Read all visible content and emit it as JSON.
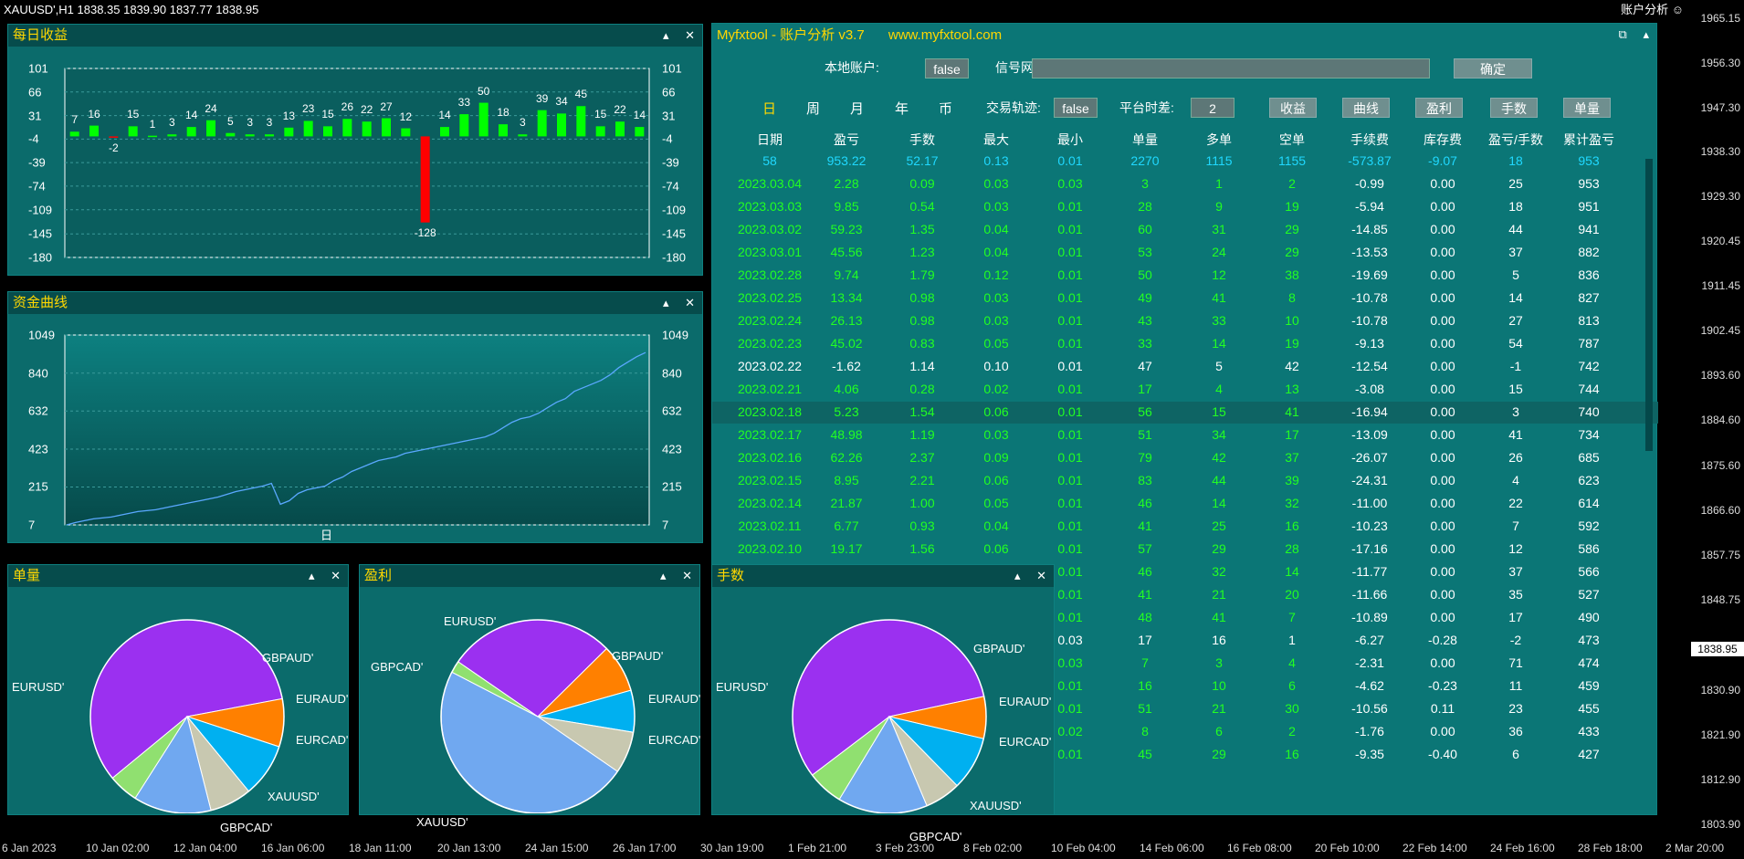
{
  "chart_header": {
    "symbol_line": "XAUUSD',H1  1838.35 1839.90 1837.77 1838.95",
    "right_label": "账户分析 ☺"
  },
  "price_scale": {
    "ticks": [
      "1965.15",
      "1956.30",
      "1947.30",
      "1938.30",
      "1929.30",
      "1920.45",
      "1911.45",
      "1902.45",
      "1893.60",
      "1884.60",
      "1875.60",
      "1866.60",
      "1857.75",
      "1848.75",
      "1830.90",
      "1821.90",
      "1812.90",
      "1803.90"
    ],
    "current": "1838.95"
  },
  "time_scale": {
    "ticks": [
      "6 Jan 2023",
      "10 Jan 02:00",
      "12 Jan 04:00",
      "16 Jan 06:00",
      "18 Jan 11:00",
      "20 Jan 13:00",
      "24 Jan 15:00",
      "26 Jan 17:00",
      "30 Jan 19:00",
      "1 Feb 21:00",
      "3 Feb 23:00",
      "8 Feb 02:00",
      "10 Feb 04:00",
      "14 Feb 06:00",
      "16 Feb 08:00",
      "20 Feb 10:00",
      "22 Feb 14:00",
      "24 Feb 16:00",
      "28 Feb 18:00",
      "2 Mar 20:00"
    ]
  },
  "panel_buttons": {
    "min": "▴",
    "close": "✕",
    "restore": "⧉"
  },
  "daily": {
    "title": "每日收益",
    "yticks": [
      "101",
      "66",
      "31",
      "-4",
      "-39",
      "-74",
      "-109",
      "-145",
      "-180"
    ],
    "chart_data": {
      "type": "bar",
      "values": [
        7,
        16,
        -2,
        15,
        1,
        3,
        14,
        24,
        5,
        3,
        3,
        13,
        23,
        15,
        26,
        22,
        27,
        12,
        -128,
        14,
        33,
        50,
        18,
        3,
        39,
        34,
        45,
        15,
        22,
        14
      ],
      "ylim": [
        -180,
        101
      ],
      "colors": {
        "positive": "#00ff00",
        "negative": "#ff0000"
      }
    }
  },
  "equity": {
    "title": "资金曲线",
    "yticks": [
      "1049",
      "840",
      "632",
      "423",
      "215",
      "7"
    ],
    "xlabel": "日",
    "chart_data": {
      "type": "line",
      "ylim": [
        7,
        1049
      ],
      "values": [
        7,
        20,
        30,
        40,
        45,
        50,
        60,
        70,
        80,
        85,
        90,
        100,
        110,
        120,
        130,
        140,
        150,
        160,
        175,
        190,
        200,
        210,
        220,
        235,
        120,
        140,
        180,
        200,
        210,
        220,
        250,
        270,
        300,
        320,
        340,
        360,
        370,
        380,
        400,
        410,
        420,
        430,
        440,
        450,
        460,
        470,
        480,
        490,
        510,
        540,
        570,
        590,
        600,
        620,
        650,
        680,
        700,
        740,
        760,
        780,
        800,
        830,
        870,
        900,
        930,
        953
      ],
      "line_color": "#5aa8ff"
    }
  },
  "analysis": {
    "title": "Myfxtool - 账户分析 v3.7",
    "site": "www.myfxtool.com",
    "local_account_label": "本地账户:",
    "local_account_value": "false",
    "signal_url_label": "信号网址:",
    "signal_url_value": "",
    "confirm": "确定",
    "period_tabs": [
      "日",
      "周",
      "月",
      "年",
      "币"
    ],
    "trail_label": "交易轨迹:",
    "trail_value": "false",
    "tz_label": "平台时差:",
    "tz_value": "2",
    "view_buttons": [
      "收益",
      "曲线",
      "盈利",
      "手数",
      "单量"
    ],
    "headers": [
      "日期",
      "盈亏",
      "手数",
      "最大",
      "最小",
      "单量",
      "多单",
      "空单",
      "手续费",
      "库存费",
      "盈亏/手数",
      "累计盈亏"
    ],
    "summary": [
      "58",
      "953.22",
      "52.17",
      "0.13",
      "0.01",
      "2270",
      "1115",
      "1155",
      "-573.87",
      "-9.07",
      "18",
      "953"
    ],
    "rows": [
      [
        "2023.03.04",
        "2.28",
        "0.09",
        "0.03",
        "0.03",
        "3",
        "1",
        "2",
        "-0.99",
        "0.00",
        "25",
        "953"
      ],
      [
        "2023.03.03",
        "9.85",
        "0.54",
        "0.03",
        "0.01",
        "28",
        "9",
        "19",
        "-5.94",
        "0.00",
        "18",
        "951"
      ],
      [
        "2023.03.02",
        "59.23",
        "1.35",
        "0.04",
        "0.01",
        "60",
        "31",
        "29",
        "-14.85",
        "0.00",
        "44",
        "941"
      ],
      [
        "2023.03.01",
        "45.56",
        "1.23",
        "0.04",
        "0.01",
        "53",
        "24",
        "29",
        "-13.53",
        "0.00",
        "37",
        "882"
      ],
      [
        "2023.02.28",
        "9.74",
        "1.79",
        "0.12",
        "0.01",
        "50",
        "12",
        "38",
        "-19.69",
        "0.00",
        "5",
        "836"
      ],
      [
        "2023.02.25",
        "13.34",
        "0.98",
        "0.03",
        "0.01",
        "49",
        "41",
        "8",
        "-10.78",
        "0.00",
        "14",
        "827"
      ],
      [
        "2023.02.24",
        "26.13",
        "0.98",
        "0.03",
        "0.01",
        "43",
        "33",
        "10",
        "-10.78",
        "0.00",
        "27",
        "813"
      ],
      [
        "2023.02.23",
        "45.02",
        "0.83",
        "0.05",
        "0.01",
        "33",
        "14",
        "19",
        "-9.13",
        "0.00",
        "54",
        "787"
      ],
      [
        "2023.02.22",
        "-1.62",
        "1.14",
        "0.10",
        "0.01",
        "47",
        "5",
        "42",
        "-12.54",
        "0.00",
        "-1",
        "742"
      ],
      [
        "2023.02.21",
        "4.06",
        "0.28",
        "0.02",
        "0.01",
        "17",
        "4",
        "13",
        "-3.08",
        "0.00",
        "15",
        "744"
      ],
      [
        "2023.02.18",
        "5.23",
        "1.54",
        "0.06",
        "0.01",
        "56",
        "15",
        "41",
        "-16.94",
        "0.00",
        "3",
        "740"
      ],
      [
        "2023.02.17",
        "48.98",
        "1.19",
        "0.03",
        "0.01",
        "51",
        "34",
        "17",
        "-13.09",
        "0.00",
        "41",
        "734"
      ],
      [
        "2023.02.16",
        "62.26",
        "2.37",
        "0.09",
        "0.01",
        "79",
        "42",
        "37",
        "-26.07",
        "0.00",
        "26",
        "685"
      ],
      [
        "2023.02.15",
        "8.95",
        "2.21",
        "0.06",
        "0.01",
        "83",
        "44",
        "39",
        "-24.31",
        "0.00",
        "4",
        "623"
      ],
      [
        "2023.02.14",
        "21.87",
        "1.00",
        "0.05",
        "0.01",
        "46",
        "14",
        "32",
        "-11.00",
        "0.00",
        "22",
        "614"
      ],
      [
        "2023.02.11",
        "6.77",
        "0.93",
        "0.04",
        "0.01",
        "41",
        "25",
        "16",
        "-10.23",
        "0.00",
        "7",
        "592"
      ],
      [
        "2023.02.10",
        "19.17",
        "1.56",
        "0.06",
        "0.01",
        "57",
        "29",
        "28",
        "-17.16",
        "0.00",
        "12",
        "586"
      ]
    ],
    "partial_rows": [
      [
        "0.01",
        "46",
        "32",
        "14",
        "-11.77",
        "0.00",
        "37",
        "566"
      ],
      [
        "0.01",
        "41",
        "21",
        "20",
        "-11.66",
        "0.00",
        "35",
        "527"
      ],
      [
        "0.01",
        "48",
        "41",
        "7",
        "-10.89",
        "0.00",
        "17",
        "490"
      ],
      [
        "0.03",
        "17",
        "16",
        "1",
        "-6.27",
        "-0.28",
        "-2",
        "473"
      ],
      [
        "0.03",
        "7",
        "3",
        "4",
        "-2.31",
        "0.00",
        "71",
        "474"
      ],
      [
        "0.01",
        "16",
        "10",
        "6",
        "-4.62",
        "-0.23",
        "11",
        "459"
      ],
      [
        "0.01",
        "51",
        "21",
        "30",
        "-10.56",
        "0.11",
        "23",
        "455"
      ],
      [
        "0.02",
        "8",
        "6",
        "2",
        "-1.76",
        "0.00",
        "36",
        "433"
      ],
      [
        "0.01",
        "45",
        "29",
        "16",
        "-9.35",
        "-0.40",
        "6",
        "427"
      ]
    ]
  },
  "pies": [
    {
      "title": "单量",
      "chart_data": {
        "type": "pie",
        "labels": [
          "EURUSD'",
          "GBPAUD'",
          "EURAUD'",
          "EURCAD'",
          "XAUUSD'",
          "GBPCAD'"
        ],
        "values": [
          58,
          8,
          9,
          7,
          13,
          5
        ],
        "colors": [
          "#9b30f0",
          "#ff8000",
          "#00b0f0",
          "#c8c8b0",
          "#70a8f0",
          "#90e070"
        ]
      }
    },
    {
      "title": "盈利",
      "chart_data": {
        "type": "pie",
        "labels": [
          "EURUSD'",
          "GBPAUD'",
          "EURAUD'",
          "EURCAD'",
          "XAUUSD'",
          "GBPCAD'"
        ],
        "values": [
          28,
          8,
          7,
          7,
          48,
          2
        ],
        "colors": [
          "#9b30f0",
          "#ff8000",
          "#00b0f0",
          "#c8c8b0",
          "#70a8f0",
          "#90e070"
        ]
      }
    },
    {
      "title": "手数",
      "chart_data": {
        "type": "pie",
        "labels": [
          "EURUSD'",
          "GBPAUD'",
          "EURAUD'",
          "EURCAD'",
          "XAUUSD'",
          "GBPCAD'"
        ],
        "values": [
          57,
          7,
          9,
          6,
          15,
          6
        ],
        "colors": [
          "#9b30f0",
          "#ff8000",
          "#00b0f0",
          "#c8c8b0",
          "#70a8f0",
          "#90e070"
        ]
      }
    }
  ]
}
